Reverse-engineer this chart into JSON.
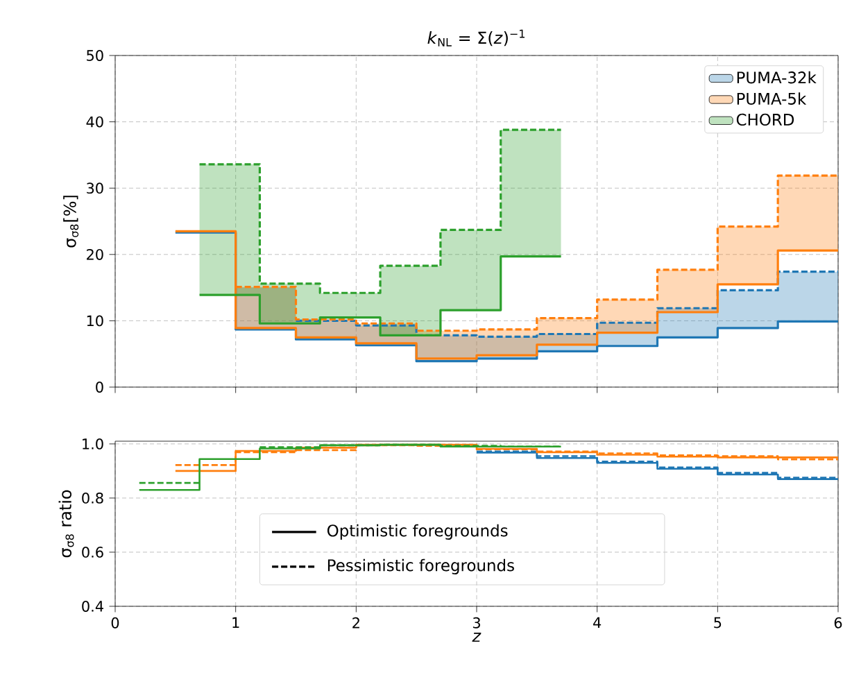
{
  "chart_data": [
    {
      "type": "step",
      "title": "*k*$_{NL}$ = Σ(*z*)$^{−1}$",
      "ylabel": "σ$_{σ8}$[%]",
      "xlim": [
        0,
        6
      ],
      "xticks": [
        0,
        1,
        2,
        3,
        4,
        5,
        6
      ],
      "ylim": [
        0,
        50
      ],
      "yticks": [
        0,
        10,
        20,
        30,
        40,
        50
      ],
      "tick_labels": "y",
      "grid": true,
      "legend": "top right",
      "series": [
        {
          "name": "PUMA-32k",
          "color": "#1f77b4",
          "line_style": "solid",
          "x": [
            0.5,
            1,
            1.5,
            2,
            2.5,
            3,
            3.5,
            4,
            4.5,
            5,
            5.5,
            6
          ],
          "values": [
            23.3,
            8.7,
            7.2,
            6.3,
            3.9,
            4.3,
            5.4,
            6.2,
            7.5,
            8.9,
            9.9,
            9.9
          ],
          "lower": [
            null,
            8.7,
            7.2,
            6.3,
            3.9,
            4.3,
            5.4,
            6.2,
            7.5,
            8.9,
            9.9,
            9.9
          ],
          "upper": [
            null,
            15.0,
            10.0,
            9.3,
            7.8,
            7.6,
            8.0,
            9.7,
            11.9,
            14.6,
            17.4,
            17.4
          ]
        },
        {
          "color": "#1f77b4",
          "line_style": "dashed",
          "x": [
            1.5,
            2,
            2.5,
            3,
            3.5,
            4,
            4.5,
            5,
            5.5,
            6
          ],
          "values": [
            10.0,
            9.3,
            7.8,
            7.6,
            8.0,
            9.7,
            11.9,
            14.6,
            17.4,
            17.4
          ]
        },
        {
          "name": "PUMA-5k",
          "color": "#ff7f0e",
          "line_style": "solid",
          "x": [
            0.5,
            1,
            1.5,
            2,
            2.5,
            3,
            3.5,
            4,
            4.5,
            5,
            5.5,
            6
          ],
          "values": [
            23.5,
            8.9,
            7.5,
            6.6,
            4.3,
            4.8,
            6.4,
            8.2,
            11.3,
            15.5,
            20.6,
            20.6
          ],
          "lower": [
            null,
            8.9,
            7.5,
            6.6,
            4.3,
            4.8,
            6.4,
            8.2,
            11.3,
            15.5,
            20.6,
            20.6
          ],
          "upper": [
            null,
            15.1,
            10.2,
            9.6,
            8.5,
            8.7,
            10.4,
            13.2,
            17.7,
            24.2,
            31.9,
            31.9
          ]
        },
        {
          "color": "#ff7f0e",
          "line_style": "dashed",
          "x": [
            1,
            1.5,
            2,
            2.5,
            3,
            3.5,
            4,
            4.5,
            5,
            5.5,
            6
          ],
          "values": [
            15.1,
            10.2,
            9.6,
            8.5,
            8.7,
            10.4,
            13.2,
            17.7,
            24.2,
            31.9,
            31.9
          ]
        },
        {
          "name": "CHORD",
          "color": "#2ca02c",
          "line_style": "solid",
          "x": [
            0.7,
            1.2,
            1.7,
            2.2,
            2.7,
            3.2,
            3.7
          ],
          "values": [
            13.9,
            9.6,
            10.5,
            7.8,
            11.6,
            19.7,
            19.7
          ],
          "lower": [
            13.9,
            9.6,
            10.5,
            7.8,
            11.6,
            19.7,
            19.7
          ],
          "upper": [
            33.6,
            15.6,
            14.2,
            18.3,
            23.7,
            38.8,
            38.8
          ]
        },
        {
          "color": "#2ca02c",
          "line_style": "dashed",
          "x": [
            0.7,
            1.2,
            1.7,
            2.2,
            2.7,
            3.2,
            3.7
          ],
          "values": [
            33.6,
            15.6,
            14.2,
            18.3,
            23.7,
            38.8,
            38.8
          ]
        }
      ]
    },
    {
      "type": "step",
      "xlabel": "*z*",
      "ylabel": "σ$_{σ8}$ ratio",
      "xlim": [
        0,
        6
      ],
      "xticks": [
        0,
        1,
        2,
        3,
        4,
        5,
        6
      ],
      "ylim": [
        0.4,
        1.01
      ],
      "yticks": [
        0.4,
        0.6,
        0.8,
        {
          "value": 1,
          "label": "1.0"
        }
      ],
      "grid": true,
      "annotations": [
        "Optimistic foregrounds",
        "Pessimistic foregrounds"
      ],
      "series": [
        {
          "color": "#1f77b4",
          "line_style": "solid",
          "x": [
            3,
            3.5,
            4,
            4.5,
            5,
            5.5,
            6
          ],
          "values": [
            0.968,
            0.948,
            0.93,
            0.908,
            0.887,
            0.87,
            0.87
          ]
        },
        {
          "color": "#1f77b4",
          "line_style": "dashed",
          "x": [
            3,
            3.5,
            4,
            4.5,
            5,
            5.5,
            6
          ],
          "values": [
            0.972,
            0.955,
            0.935,
            0.913,
            0.893,
            0.875,
            0.875
          ]
        },
        {
          "color": "#ff7f0e",
          "line_style": "solid",
          "x": [
            0.5,
            1,
            1.5,
            2,
            2.5,
            3,
            3.5,
            4,
            4.5,
            5,
            5.5,
            6
          ],
          "values": [
            0.9,
            0.974,
            0.986,
            0.997,
            0.997,
            0.982,
            0.969,
            0.96,
            0.953,
            0.95,
            0.95,
            0.95
          ]
        },
        {
          "color": "#ff7f0e",
          "line_style": "dashed",
          "x": [
            0.5,
            1,
            1.5,
            2,
            2.5,
            3,
            3.5,
            4,
            4.5,
            5,
            5.5,
            6
          ],
          "values": [
            0.922,
            0.969,
            0.977,
            0.995,
            0.993,
            0.98,
            0.972,
            0.965,
            0.958,
            0.955,
            0.943,
            0.943
          ]
        },
        {
          "color": "#2ca02c",
          "line_style": "solid",
          "x": [
            0.2,
            0.7,
            1.2,
            1.7,
            2.2,
            2.7,
            3.2,
            3.7
          ],
          "values": [
            0.83,
            0.944,
            0.983,
            0.995,
            0.997,
            0.99,
            0.99,
            0.99
          ]
        },
        {
          "color": "#2ca02c",
          "line_style": "dashed",
          "x": [
            0.2,
            0.7,
            1.2,
            1.7,
            2.2,
            2.7,
            3.2,
            3.7
          ],
          "values": [
            0.856,
            null,
            0.988,
            0.995,
            0.997,
            0.993,
            0.99,
            0.99
          ]
        }
      ]
    }
  ]
}
